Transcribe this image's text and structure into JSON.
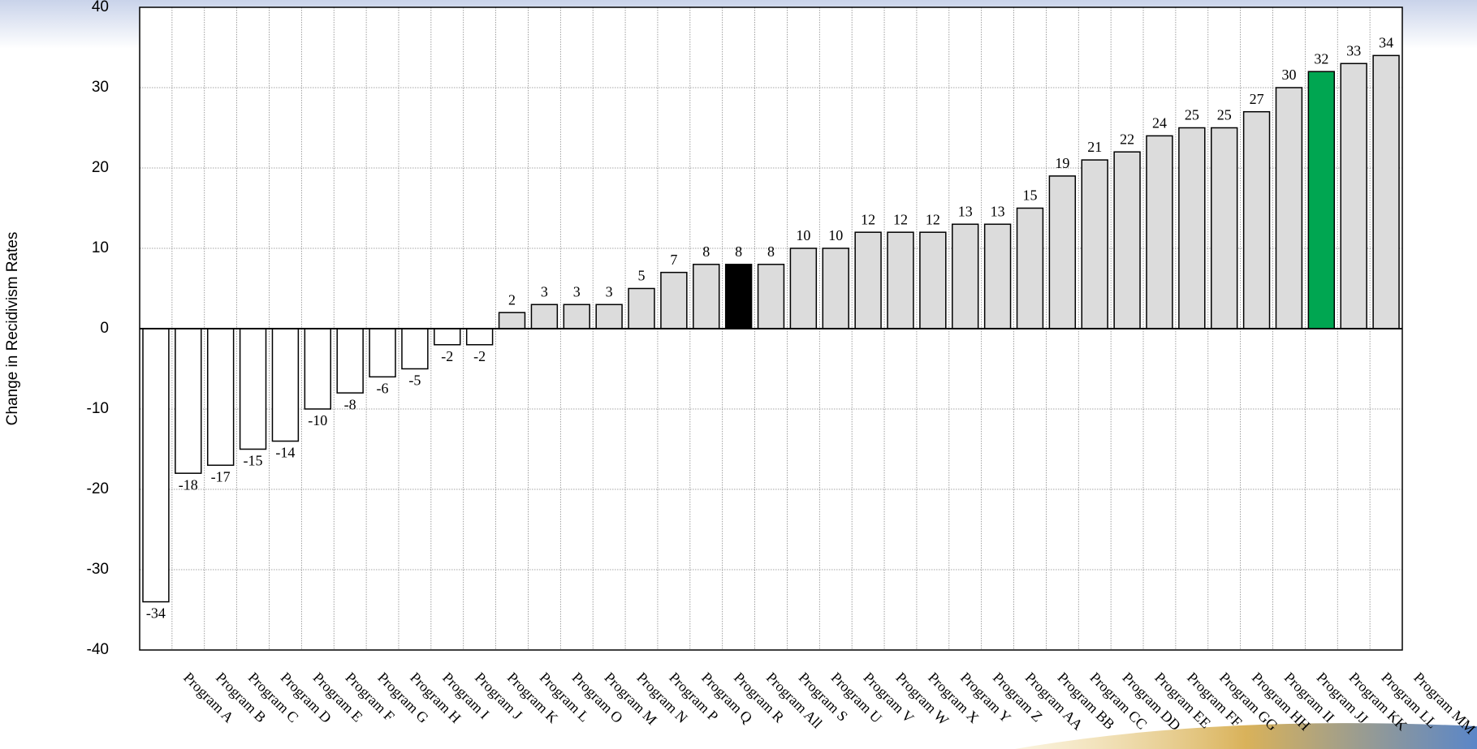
{
  "chart_data": {
    "type": "bar",
    "y_label": "Change in Recidivism Rates",
    "categories": [
      "Program A",
      "Program B",
      "Program C",
      "Program D",
      "Program E",
      "Program F",
      "Program G",
      "Program H",
      "Program I",
      "Program J",
      "Program K",
      "Program L",
      "Program O",
      "Program M",
      "Program N",
      "Program P",
      "Program Q",
      "Program R",
      "Program All",
      "Program S",
      "Program U",
      "Program V",
      "Program W",
      "Program X",
      "Program Y",
      "Program Z",
      "Program AA",
      "Program BB",
      "Program CC",
      "Program DD",
      "Program EE",
      "Program FF",
      "Program GG",
      "Program HH",
      "Program II",
      "Program JJ",
      "Program KK",
      "Program LL",
      "Program MM"
    ],
    "values": [
      -34,
      -18,
      -17,
      -15,
      -14,
      -10,
      -8,
      -6,
      -5,
      -2,
      -2,
      2,
      3,
      3,
      3,
      5,
      7,
      8,
      8,
      8,
      10,
      10,
      12,
      12,
      12,
      13,
      13,
      15,
      19,
      21,
      22,
      24,
      25,
      25,
      27,
      30,
      32,
      33,
      34
    ],
    "colors": [
      "#ffffff",
      "#ffffff",
      "#ffffff",
      "#ffffff",
      "#ffffff",
      "#ffffff",
      "#ffffff",
      "#ffffff",
      "#ffffff",
      "#ffffff",
      "#ffffff",
      "#dcdcdc",
      "#dcdcdc",
      "#dcdcdc",
      "#dcdcdc",
      "#dcdcdc",
      "#dcdcdc",
      "#dcdcdc",
      "#000000",
      "#dcdcdc",
      "#dcdcdc",
      "#dcdcdc",
      "#dcdcdc",
      "#dcdcdc",
      "#dcdcdc",
      "#dcdcdc",
      "#dcdcdc",
      "#dcdcdc",
      "#dcdcdc",
      "#dcdcdc",
      "#dcdcdc",
      "#dcdcdc",
      "#dcdcdc",
      "#dcdcdc",
      "#dcdcdc",
      "#dcdcdc",
      "#00a651",
      "#dcdcdc",
      "#dcdcdc"
    ],
    "ylim": [
      -40,
      40
    ],
    "yticks": [
      -40,
      -30,
      -20,
      -10,
      0,
      10,
      20,
      30,
      40
    ],
    "grid": true
  }
}
